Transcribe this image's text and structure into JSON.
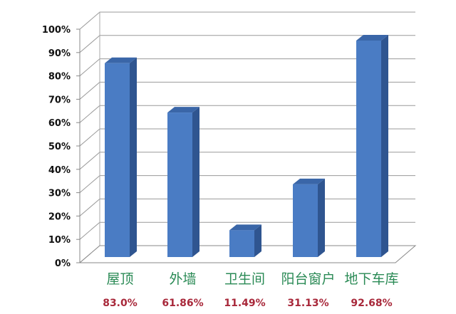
{
  "chart_data": {
    "type": "bar",
    "style": "3d",
    "categories": [
      "屋顶",
      "外墙",
      "卫生间",
      "阳台窗户",
      "地下车库"
    ],
    "values": [
      83.0,
      61.86,
      11.49,
      31.13,
      92.68
    ],
    "value_labels": [
      "83.0%",
      "61.86%",
      "11.49%",
      "31.13%",
      "92.68%"
    ],
    "ylim": [
      0,
      100
    ],
    "yticks": [
      "0%",
      "10%",
      "20%",
      "30%",
      "40%",
      "50%",
      "60%",
      "70%",
      "80%",
      "90%",
      "100%"
    ],
    "grid": true,
    "legend": "none",
    "colors": {
      "bar": "#4a7cc4",
      "bar_side": "#2f5590",
      "bar_top": "#3a66a8",
      "category_text": "#2a8a55",
      "value_text": "#a8283a"
    }
  }
}
